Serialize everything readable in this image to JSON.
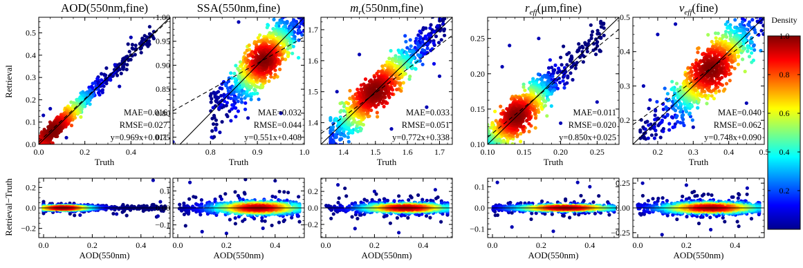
{
  "figure": {
    "y_label_top": "Retrieval",
    "y_label_bottom": "Retrieval−Truth",
    "x_label_top": "Truth",
    "x_label_bottom": "AOD(550nm)"
  },
  "colorbar": {
    "title": "Density",
    "ticks": [
      "0.2",
      "0.4",
      "0.6",
      "0.8",
      "1.0"
    ],
    "tick_values": [
      0.2,
      0.4,
      0.6,
      0.8,
      1.0
    ],
    "range": [
      0,
      1
    ],
    "colormap": "jet"
  },
  "chart_data": [
    {
      "type": "scatter",
      "panel": "AOD-fine-top",
      "title": "AOD(550nm,fine)",
      "xlabel": "Truth",
      "ylabel": "Retrieval",
      "color_by": "density",
      "xlim": [
        0,
        0.57
      ],
      "ylim": [
        0,
        0.57
      ],
      "xticks": [
        0.0,
        0.2,
        0.4
      ],
      "xtick_labels": [
        "0.0",
        "0.2",
        "0.4"
      ],
      "yticks": [
        0.0,
        0.1,
        0.2,
        0.3,
        0.4,
        0.5
      ],
      "ytick_labels": [
        "0.0",
        "0.1",
        "0.2",
        "0.3",
        "0.4",
        "0.5"
      ],
      "slope": 0.969,
      "intercept": 0.011,
      "annotations": [
        "MAE=0.016",
        "RMSE=0.027",
        "y=0.969x+0.011"
      ],
      "dense_center": [
        0.06,
        0.06
      ],
      "spread": [
        0.09,
        0.09
      ],
      "scatter_sd": 0.02,
      "x_range": [
        0.0,
        0.5
      ],
      "outliers": [
        [
          0.12,
          0.03
        ],
        [
          0.05,
          0.16
        ],
        [
          0.4,
          0.48
        ],
        [
          0.35,
          0.26
        ],
        [
          0.02,
          0.13
        ]
      ]
    },
    {
      "type": "scatter",
      "panel": "SSA-fine-top",
      "title": "SSA(550nm,fine)",
      "xlabel": "Truth",
      "ylabel": "",
      "color_by": "density",
      "xlim": [
        0.72,
        1.0
      ],
      "ylim": [
        0.735,
        1.0
      ],
      "xticks": [
        0.8,
        0.9,
        1.0
      ],
      "xtick_labels": [
        "0.8",
        "0.9",
        "1.0"
      ],
      "yticks": [
        0.75,
        0.8,
        0.85,
        0.9,
        0.95,
        1.0
      ],
      "ytick_labels": [
        "0.75",
        "0.80",
        "0.85",
        "0.90",
        "0.95",
        "1.00"
      ],
      "slope": 0.551,
      "intercept": 0.408,
      "annotations": [
        "MAE=0.032",
        "RMSE=0.044",
        "y=0.551x+0.408"
      ],
      "dense_center": [
        0.915,
        0.91
      ],
      "spread": [
        0.035,
        0.035
      ],
      "scatter_sd": 0.025,
      "x_range": [
        0.8,
        1.0
      ],
      "outliers": [
        [
          0.82,
          0.76
        ],
        [
          0.88,
          0.79
        ],
        [
          0.86,
          0.99
        ],
        [
          0.72,
          0.74
        ],
        [
          0.95,
          0.8
        ]
      ]
    },
    {
      "type": "scatter",
      "panel": "mr-fine-top",
      "title": "m_r(550nm,fine)",
      "title_main": "m",
      "title_sub": "r",
      "title_rest": "(550nm,fine)",
      "xlabel": "Truth",
      "ylabel": "",
      "color_by": "density",
      "xlim": [
        1.33,
        1.74
      ],
      "ylim": [
        1.33,
        1.74
      ],
      "xticks": [
        1.4,
        1.5,
        1.6,
        1.7
      ],
      "xtick_labels": [
        "1.4",
        "1.5",
        "1.6",
        "1.7"
      ],
      "yticks": [
        1.4,
        1.5,
        1.6,
        1.7
      ],
      "ytick_labels": [
        "1.4",
        "1.5",
        "1.6",
        "1.7"
      ],
      "slope": 0.772,
      "intercept": 0.338,
      "annotations": [
        "MAE=0.033",
        "RMSE=0.051",
        "y=0.772x+0.338"
      ],
      "dense_center": [
        1.5,
        1.5
      ],
      "spread": [
        0.07,
        0.07
      ],
      "scatter_sd": 0.03,
      "x_range": [
        1.36,
        1.72
      ],
      "outliers": [
        [
          1.45,
          1.62
        ],
        [
          1.66,
          1.45
        ],
        [
          1.38,
          1.5
        ],
        [
          1.7,
          1.55
        ],
        [
          1.55,
          1.38
        ]
      ]
    },
    {
      "type": "scatter",
      "panel": "reff-fine-top",
      "title": "r_eff(μm,fine)",
      "title_main": "r",
      "title_sub": "eff",
      "title_rest": "(μm,fine)",
      "xlabel": "Truth",
      "ylabel": "",
      "color_by": "density",
      "xlim": [
        0.1,
        0.28
      ],
      "ylim": [
        0.1,
        0.28
      ],
      "xticks": [
        0.1,
        0.15,
        0.2,
        0.25
      ],
      "xtick_labels": [
        "0.10",
        "0.15",
        "0.20",
        "0.25"
      ],
      "yticks": [
        0.1,
        0.15,
        0.2,
        0.25
      ],
      "ytick_labels": [
        "0.10",
        "0.15",
        "0.20",
        "0.25"
      ],
      "slope": 0.85,
      "intercept": 0.025,
      "annotations": [
        "MAE=0.011",
        "RMSE=0.020",
        "y=0.850x+0.025"
      ],
      "dense_center": [
        0.14,
        0.14
      ],
      "spread": [
        0.025,
        0.025
      ],
      "scatter_sd": 0.012,
      "x_range": [
        0.1,
        0.26
      ],
      "outliers": [
        [
          0.13,
          0.24
        ],
        [
          0.2,
          0.13
        ],
        [
          0.12,
          0.21
        ],
        [
          0.25,
          0.16
        ],
        [
          0.17,
          0.25
        ]
      ]
    },
    {
      "type": "scatter",
      "panel": "veff-fine-top",
      "title": "v_eff(fine)",
      "title_main": "v",
      "title_sub": "eff",
      "title_rest": "(fine)",
      "xlabel": "Truth",
      "ylabel": "",
      "color_by": "density",
      "xlim": [
        0.13,
        0.5
      ],
      "ylim": [
        0.13,
        0.5
      ],
      "xticks": [
        0.2,
        0.3,
        0.4,
        0.5
      ],
      "xtick_labels": [
        "0.2",
        "0.3",
        "0.4",
        "0.5"
      ],
      "yticks": [
        0.2,
        0.3,
        0.4,
        0.5
      ],
      "ytick_labels": [
        "0.2",
        "0.3",
        "0.4",
        "0.5"
      ],
      "slope": 0.748,
      "intercept": 0.09,
      "annotations": [
        "MAE=0.040",
        "RMSE=0.062",
        "y=0.748x+0.090"
      ],
      "dense_center": [
        0.35,
        0.35
      ],
      "spread": [
        0.06,
        0.06
      ],
      "scatter_sd": 0.035,
      "x_range": [
        0.15,
        0.5
      ],
      "outliers": [
        [
          0.2,
          0.45
        ],
        [
          0.3,
          0.18
        ],
        [
          0.16,
          0.3
        ],
        [
          0.45,
          0.25
        ],
        [
          0.25,
          0.48
        ]
      ]
    },
    {
      "type": "scatter",
      "panel": "AOD-fine-bottom",
      "xlabel": "AOD(550nm)",
      "ylabel": "Retrieval−Truth",
      "color_by": "density",
      "xlim": [
        -0.02,
        0.52
      ],
      "ylim": [
        -0.29,
        0.29
      ],
      "xticks": [
        0.0,
        0.2,
        0.4
      ],
      "xtick_labels": [
        "0.0",
        "0.2",
        "0.4"
      ],
      "yticks": [
        -0.2,
        0.0,
        0.2
      ],
      "ytick_labels": [
        "−0.2",
        "0.0",
        "0.2"
      ],
      "dense_x": 0.08,
      "dense_sd": 0.06,
      "resid_sd": 0.012,
      "outliers": [
        [
          0.45,
          0.27
        ],
        [
          0.48,
          0.06
        ],
        [
          0.3,
          -0.06
        ],
        [
          0.15,
          -0.07
        ],
        [
          0.47,
          -0.08
        ]
      ]
    },
    {
      "type": "scatter",
      "panel": "SSA-fine-bottom",
      "xlabel": "AOD(550nm)",
      "ylabel": "",
      "color_by": "density",
      "xlim": [
        -0.02,
        0.52
      ],
      "ylim": [
        -0.175,
        0.175
      ],
      "xticks": [
        0.0,
        0.2,
        0.4
      ],
      "xtick_labels": [
        "0.0",
        "0.2",
        "0.4"
      ],
      "yticks": [
        -0.1,
        0.0,
        0.1
      ],
      "ytick_labels": [
        "−0.1",
        "0.00",
        "0.1"
      ],
      "dense_x": 0.33,
      "dense_sd": 0.09,
      "resid_sd": 0.02,
      "outliers": [
        [
          0.05,
          0.15
        ],
        [
          0.2,
          -0.15
        ],
        [
          0.4,
          0.16
        ],
        [
          0.1,
          -0.14
        ],
        [
          0.35,
          -0.12
        ]
      ]
    },
    {
      "type": "scatter",
      "panel": "mr-fine-bottom",
      "xlabel": "AOD(550nm)",
      "ylabel": "",
      "color_by": "density",
      "xlim": [
        -0.02,
        0.52
      ],
      "ylim": [
        -0.36,
        0.36
      ],
      "xticks": [
        0.0,
        0.2,
        0.4
      ],
      "xtick_labels": [
        "0.0",
        "0.2",
        "0.4"
      ],
      "yticks": [
        -0.2,
        0.0,
        0.2
      ],
      "ytick_labels": [
        "−0.2",
        "0.0",
        "0.2"
      ],
      "dense_x": 0.33,
      "dense_sd": 0.09,
      "resid_sd": 0.03,
      "outliers": [
        [
          0.05,
          0.28
        ],
        [
          0.3,
          -0.3
        ],
        [
          0.45,
          0.22
        ],
        [
          0.12,
          -0.25
        ],
        [
          0.2,
          0.2
        ]
      ]
    },
    {
      "type": "scatter",
      "panel": "reff-fine-bottom",
      "xlabel": "AOD(550nm)",
      "ylabel": "",
      "color_by": "density",
      "xlim": [
        -0.02,
        0.52
      ],
      "ylim": [
        -0.14,
        0.14
      ],
      "xticks": [
        0.0,
        0.2,
        0.4
      ],
      "xtick_labels": [
        "0.0",
        "0.2",
        "0.4"
      ],
      "yticks": [
        -0.1,
        0.0,
        0.1
      ],
      "ytick_labels": [
        "−0.1",
        "0.0",
        "0.1"
      ],
      "dense_x": 0.3,
      "dense_sd": 0.1,
      "resid_sd": 0.008,
      "outliers": [
        [
          0.02,
          0.12
        ],
        [
          0.25,
          -0.11
        ],
        [
          0.4,
          0.1
        ],
        [
          0.08,
          -0.09
        ],
        [
          0.35,
          0.12
        ]
      ]
    },
    {
      "type": "scatter",
      "panel": "veff-fine-bottom",
      "xlabel": "AOD(550nm)",
      "ylabel": "",
      "color_by": "density",
      "xlim": [
        -0.02,
        0.52
      ],
      "ylim": [
        -0.3,
        0.3
      ],
      "xticks": [
        0.0,
        0.2,
        0.4
      ],
      "xtick_labels": [
        "0.0",
        "0.2",
        "0.4"
      ],
      "yticks": [
        -0.25,
        0.0,
        0.25
      ],
      "ytick_labels": [
        "−0.25",
        "0.00",
        "0.25"
      ],
      "dense_x": 0.3,
      "dense_sd": 0.1,
      "resid_sd": 0.03,
      "outliers": [
        [
          0.02,
          0.25
        ],
        [
          0.1,
          -0.27
        ],
        [
          0.45,
          0.2
        ],
        [
          0.3,
          -0.22
        ],
        [
          0.2,
          0.23
        ]
      ]
    }
  ]
}
